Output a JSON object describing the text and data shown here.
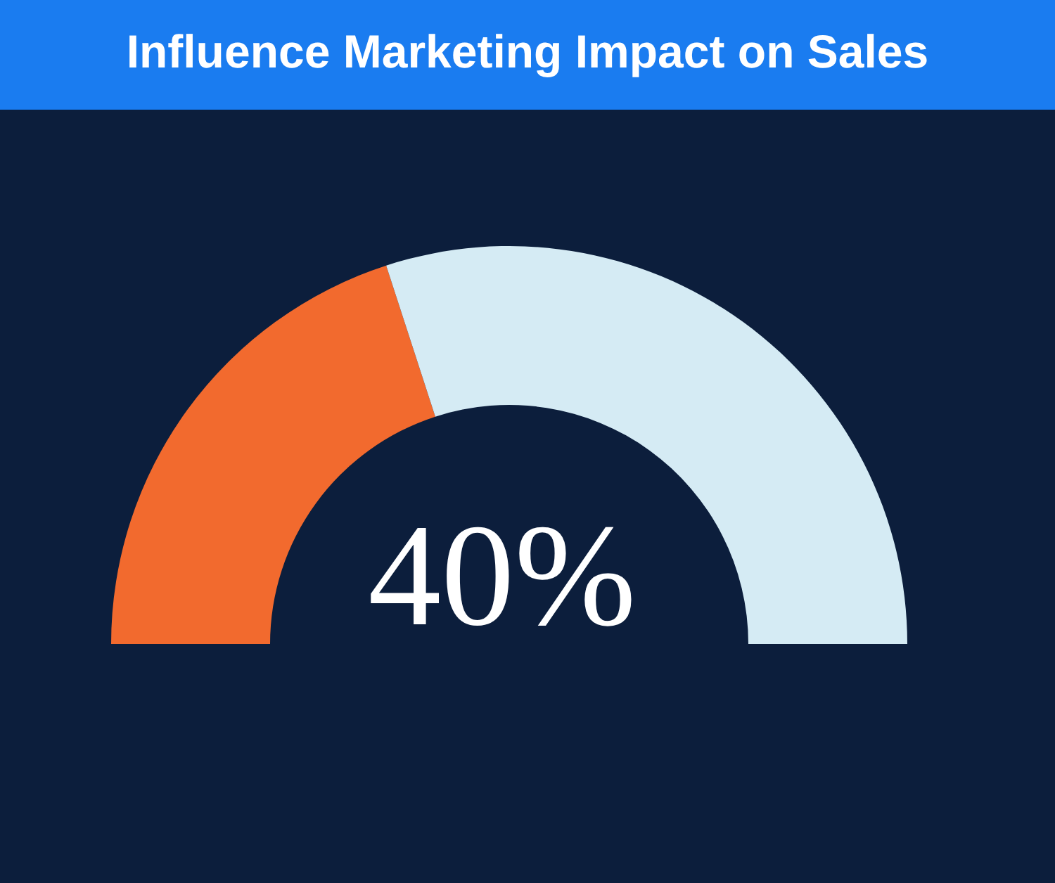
{
  "chart_data": {
    "type": "donut",
    "title": "Influence Marketing Impact on Sales",
    "categories": [
      null,
      null
    ],
    "values": [
      40,
      60
    ],
    "colors": [
      "#f26a2e",
      "#d5ebf4"
    ],
    "annotations": [
      "40%"
    ]
  }
}
